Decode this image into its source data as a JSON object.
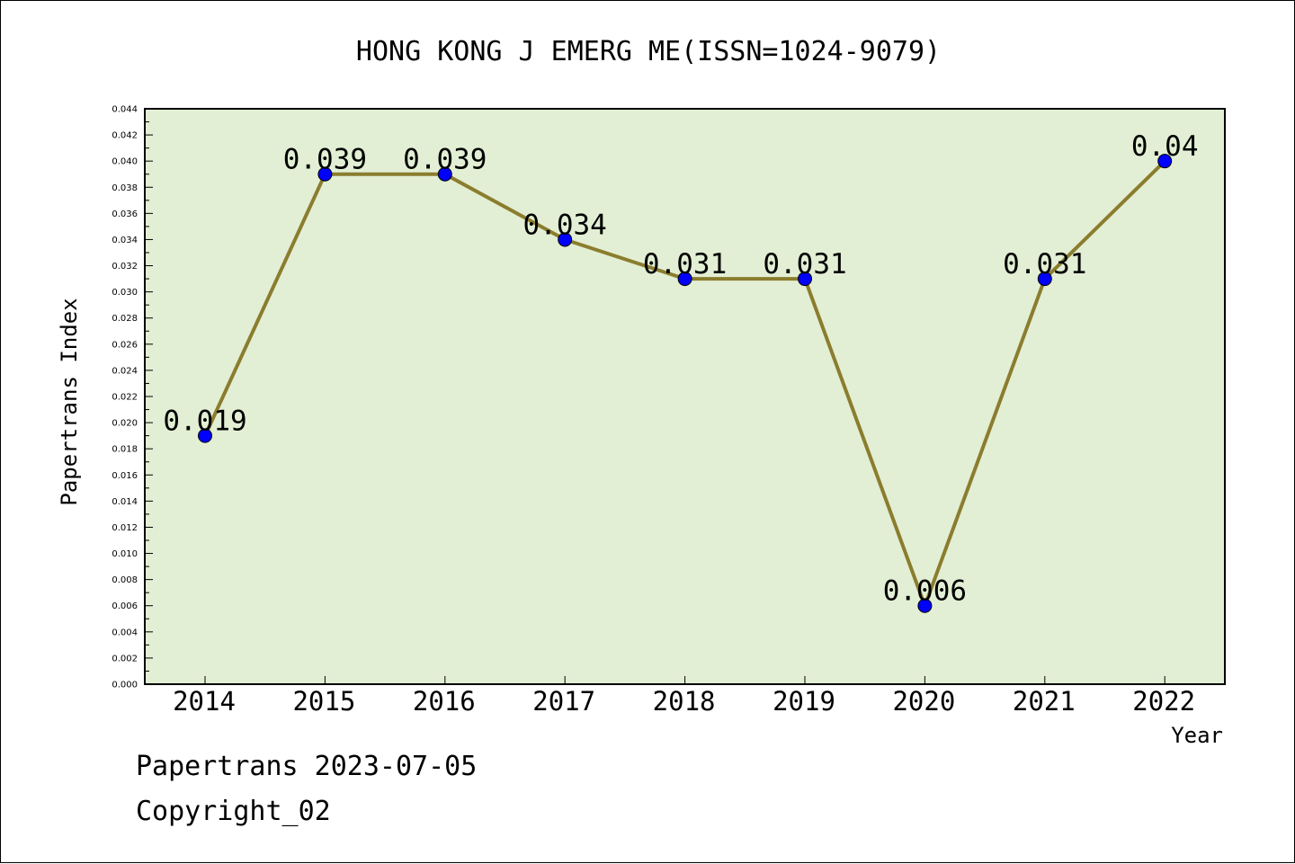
{
  "chart_data": {
    "type": "line",
    "title": "HONG KONG J EMERG ME(ISSN=1024-9079)",
    "xlabel": "Year",
    "ylabel": "Papertrans Index",
    "categories": [
      "2014",
      "2015",
      "2016",
      "2017",
      "2018",
      "2019",
      "2020",
      "2021",
      "2022"
    ],
    "values": [
      0.019,
      0.039,
      0.039,
      0.034,
      0.031,
      0.031,
      0.006,
      0.031,
      0.04
    ],
    "data_labels": [
      "0.019",
      "0.039",
      "0.039",
      "0.034",
      "0.031",
      "0.031",
      "0.006",
      "0.031",
      "0.04"
    ],
    "ylim": [
      0,
      0.044
    ],
    "ytick_step": 0.002,
    "ytick_labels": [
      "0.000",
      "0.002",
      "0.004",
      "0.006",
      "0.008",
      "0.010",
      "0.012",
      "0.014",
      "0.016",
      "0.018",
      "0.020",
      "0.022",
      "0.024",
      "0.026",
      "0.028",
      "0.030",
      "0.032",
      "0.034",
      "0.036",
      "0.038",
      "0.040",
      "0.042",
      "0.044"
    ],
    "grid": false,
    "legend": "none",
    "colors": {
      "plot_background": "#e2efd4",
      "line": "#8b7d2e",
      "marker": "#0000ff"
    }
  },
  "footer": {
    "line1": "Papertrans 2023-07-05",
    "line2": "Copyright_02"
  }
}
